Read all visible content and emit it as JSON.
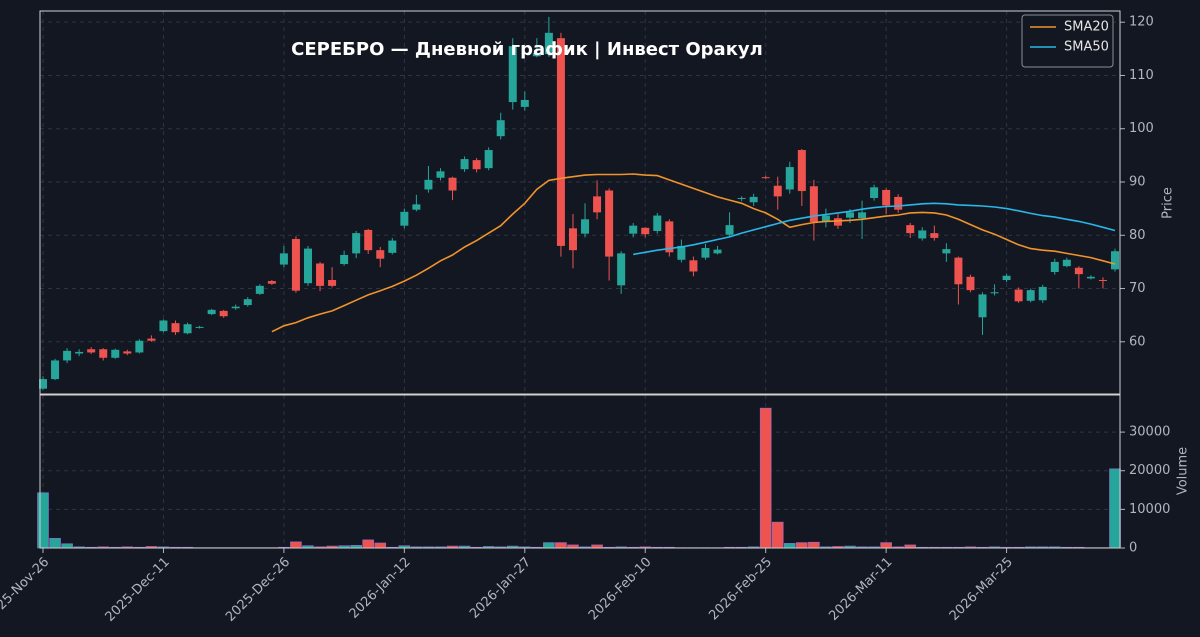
{
  "chart_data": [
    {
      "type": "candlestick",
      "title": "СЕРЕБРО  —  Дневной график  |  Инвест Оракул",
      "ylabel": "Price",
      "categories": [
        "2025-Nov-26",
        null,
        null,
        null,
        null,
        null,
        null,
        null,
        null,
        null,
        "2025-Dec-11",
        null,
        null,
        null,
        null,
        null,
        null,
        null,
        null,
        null,
        "2025-Dec-26",
        null,
        null,
        null,
        null,
        null,
        null,
        null,
        null,
        null,
        "2026-Jan-12",
        null,
        null,
        null,
        null,
        null,
        null,
        null,
        null,
        null,
        "2026-Jan-27",
        null,
        null,
        null,
        null,
        null,
        null,
        null,
        null,
        null,
        "2026-Feb-10",
        null,
        null,
        null,
        null,
        null,
        null,
        null,
        null,
        null,
        "2026-Feb-25",
        null,
        null,
        null,
        null,
        null,
        null,
        null,
        null,
        null,
        "2026-Mar-11",
        null,
        null,
        null,
        null,
        null,
        null,
        null,
        null,
        null,
        "2026-Mar-25",
        null,
        null,
        null,
        null,
        null,
        null,
        null,
        null,
        null
      ],
      "open": [
        51.2,
        53,
        56.5,
        57.8,
        58.6,
        58.6,
        57,
        58.2,
        58,
        60.6,
        62,
        63.5,
        61.6,
        62.7,
        65.2,
        65.8,
        66.3,
        66.9,
        69,
        71.4,
        74.5,
        79.3,
        71,
        74.7,
        71.6,
        74.6,
        76.6,
        81,
        77.2,
        76.7,
        81.8,
        84.8,
        88.6,
        90.8,
        90.8,
        92.4,
        94.1,
        92.6,
        98.6,
        105,
        104.1,
        113.6,
        114,
        117,
        81.3,
        80.3,
        87.3,
        88.4,
        70.6,
        80.3,
        81.4,
        80.8,
        82.6,
        75.4,
        75.3,
        75.8,
        76.6,
        80.1,
        86.9,
        86.2,
        90.9,
        89.3,
        88.6,
        96,
        89.2,
        82.5,
        83.2,
        83.3,
        83.2,
        87,
        88.5,
        87.2,
        81.9,
        79.4,
        80.4,
        76.6,
        75.8,
        72.2,
        64.6,
        69.1,
        71.6,
        69.8,
        67.7,
        67.8,
        73.1,
        74.2,
        73.9,
        71.9,
        71.6,
        73.6
      ],
      "high": [
        53.5,
        56.8,
        58.8,
        58.6,
        59,
        58.8,
        58.7,
        58.5,
        60.5,
        61.2,
        64.2,
        64,
        63.6,
        63,
        66.2,
        66,
        67,
        68.4,
        70.8,
        71.6,
        78,
        79.8,
        78,
        75,
        74,
        77.1,
        80.8,
        81.2,
        77.8,
        79.5,
        85,
        87.6,
        93,
        92.6,
        91,
        94.8,
        94.5,
        96.5,
        103,
        117,
        107,
        117,
        121,
        118,
        84,
        86,
        90.3,
        88.8,
        77,
        82.3,
        81.5,
        84.2,
        83,
        79.2,
        76,
        78.4,
        78,
        84.3,
        87.3,
        87.8,
        91.2,
        91,
        93.8,
        96.2,
        90.4,
        85,
        84,
        84.9,
        86.5,
        89.5,
        88.8,
        87.7,
        82.3,
        81.5,
        81.8,
        78.5,
        76,
        72.6,
        69.3,
        70.8,
        72.8,
        70.2,
        70,
        70.7,
        75.6,
        75.8,
        74.2,
        72.5,
        72.1,
        77.5
      ],
      "low": [
        51,
        52.8,
        56,
        57.3,
        57.7,
        56.5,
        56.8,
        57.5,
        57.8,
        60,
        61.8,
        61.3,
        61.4,
        62.5,
        65,
        64.5,
        66,
        66.6,
        68.8,
        70.7,
        74,
        69.2,
        70.5,
        69.5,
        70.2,
        74.3,
        75.7,
        76.5,
        74,
        76.4,
        81.3,
        84.5,
        88,
        90.3,
        86.6,
        91.9,
        91.8,
        92.2,
        98,
        103.6,
        103.4,
        113.4,
        113.5,
        76,
        73.8,
        79.6,
        83,
        71.5,
        69,
        79.6,
        79.6,
        80.3,
        76,
        74.9,
        72.3,
        75.4,
        76.4,
        79.8,
        86.4,
        85.5,
        90.6,
        84.8,
        87.8,
        85.5,
        79,
        81.5,
        81.2,
        82.3,
        79.3,
        86.5,
        84,
        84.2,
        79.5,
        79,
        79,
        75,
        67,
        69.3,
        61.3,
        68.7,
        71.2,
        67.3,
        67.4,
        67.3,
        72.6,
        74,
        70,
        71.7,
        70,
        73.2
      ],
      "close": [
        53,
        56.5,
        58.3,
        58.1,
        58,
        57,
        58.5,
        57.8,
        60.2,
        60.2,
        64,
        61.8,
        63.3,
        62.8,
        66,
        64.8,
        66.6,
        68,
        70.5,
        70.9,
        76.6,
        69.6,
        77.5,
        70.5,
        70.5,
        76.3,
        80.4,
        77.2,
        75.6,
        79,
        84.4,
        85.8,
        90.4,
        92,
        88.4,
        94.3,
        92.4,
        96,
        101.6,
        115.5,
        105.4,
        114.2,
        118,
        78,
        77.2,
        83,
        84.3,
        76,
        76.6,
        81.8,
        80.2,
        83.7,
        76.8,
        78,
        73.2,
        77.6,
        77.3,
        81.9,
        87,
        87.2,
        90.8,
        87.3,
        92.8,
        88.3,
        82.5,
        83.7,
        81.8,
        84.3,
        84.3,
        89,
        85.6,
        84.8,
        80.4,
        80.9,
        79.5,
        77.4,
        70.8,
        69.7,
        68.9,
        69.3,
        72.4,
        67.6,
        69.7,
        70.3,
        75,
        75.4,
        72.7,
        72.2,
        71.5,
        77
      ],
      "up_color": "#26a69a",
      "down_color": "#ef5350",
      "series": [
        {
          "name": "SMA20",
          "color": "#f0932b",
          "values": [
            null,
            null,
            null,
            null,
            null,
            null,
            null,
            null,
            null,
            null,
            null,
            null,
            null,
            null,
            null,
            null,
            null,
            null,
            null,
            61.9,
            63,
            63.6,
            64.5,
            65.2,
            65.8,
            66.8,
            67.8,
            68.8,
            69.6,
            70.4,
            71.4,
            72.5,
            73.8,
            75.2,
            76.3,
            77.8,
            79,
            80.4,
            81.8,
            84,
            86,
            88.6,
            90.3,
            90.7,
            91,
            91.3,
            91.4,
            91.4,
            91.4,
            91.5,
            91.3,
            91.2,
            90.4,
            89.6,
            88.8,
            88,
            87.2,
            86.6,
            86,
            85,
            84.2,
            83,
            81.5,
            82,
            82.4,
            82.6,
            82.7,
            82.8,
            83,
            83.3,
            83.6,
            83.8,
            84.2,
            84.3,
            84.2,
            83.8,
            83,
            82,
            81,
            80.2,
            79.2,
            78.2,
            77.5,
            77.2,
            77,
            76.6,
            76.2,
            75.8,
            75.2,
            74.6
          ]
        },
        {
          "name": "SMA50",
          "color": "#29b6e8",
          "values": [
            null,
            null,
            null,
            null,
            null,
            null,
            null,
            null,
            null,
            null,
            null,
            null,
            null,
            null,
            null,
            null,
            null,
            null,
            null,
            null,
            null,
            null,
            null,
            null,
            null,
            null,
            null,
            null,
            null,
            null,
            null,
            null,
            null,
            null,
            null,
            null,
            null,
            null,
            null,
            null,
            null,
            null,
            null,
            null,
            null,
            null,
            null,
            null,
            null,
            76.4,
            76.8,
            77.2,
            77.5,
            77.8,
            78.2,
            78.7,
            79.2,
            79.7,
            80.4,
            81,
            81.6,
            82.2,
            82.8,
            83.2,
            83.6,
            83.9,
            84.2,
            84.5,
            84.9,
            85.2,
            85.4,
            85.5,
            85.7,
            85.9,
            86,
            85.9,
            85.7,
            85.6,
            85.5,
            85.3,
            85,
            84.6,
            84.1,
            83.7,
            83.4,
            83,
            82.6,
            82.1,
            81.5,
            80.9
          ]
        }
      ],
      "ylim": [
        50.2,
        122.1
      ],
      "yticks": [
        60,
        70,
        80,
        90,
        100,
        110,
        120
      ],
      "grid": true,
      "legend": "upper right"
    },
    {
      "type": "bar",
      "ylabel": "Volume",
      "values": [
        14300,
        2500,
        1100,
        300,
        200,
        300,
        200,
        300,
        200,
        400,
        300,
        200,
        200,
        100,
        100,
        100,
        100,
        100,
        100,
        100,
        200,
        1600,
        600,
        300,
        500,
        600,
        700,
        2100,
        1300,
        200,
        600,
        300,
        300,
        300,
        500,
        500,
        200,
        400,
        300,
        500,
        300,
        200,
        1400,
        1400,
        800,
        300,
        800,
        200,
        300,
        200,
        300,
        200,
        200,
        100,
        100,
        100,
        100,
        200,
        200,
        300,
        36200,
        6700,
        1200,
        1400,
        1500,
        300,
        400,
        500,
        300,
        300,
        1400,
        300,
        800,
        200,
        200,
        200,
        200,
        300,
        200,
        300,
        200,
        200,
        300,
        300,
        300,
        200,
        200,
        100,
        100,
        20500
      ],
      "ylim": [
        0,
        39600
      ],
      "yticks": [
        0,
        10000,
        20000,
        30000
      ],
      "grid": true
    }
  ]
}
